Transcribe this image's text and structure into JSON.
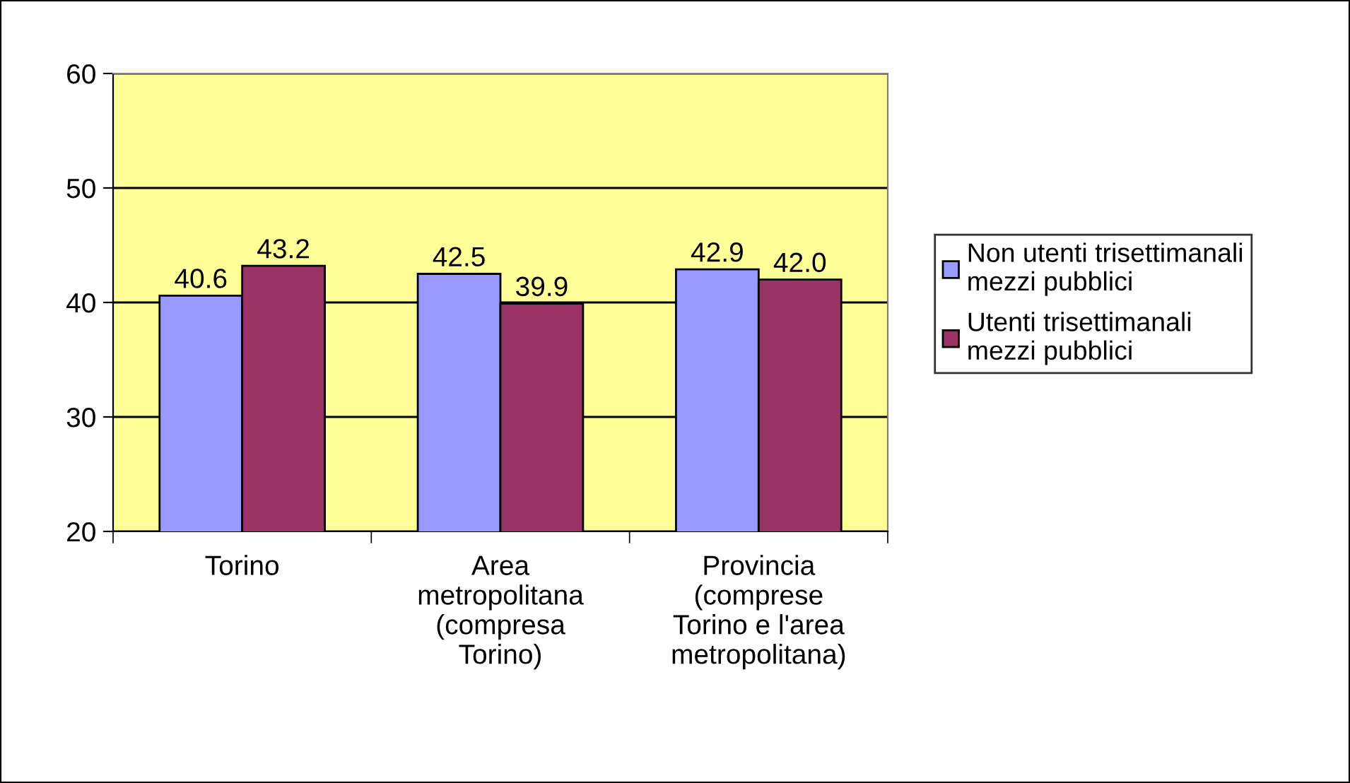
{
  "chart_data": {
    "type": "bar",
    "categories": [
      "Torino",
      "Area\nmetropolitana\n(compresa\nTorino)",
      "Provincia\n(comprese\nTorino e l'area\nmetropolitana)"
    ],
    "series": [
      {
        "name": "Non utenti trisettimanali\nmezzi pubblici",
        "color": "#9999ff",
        "values": [
          40.6,
          42.5,
          42.9
        ],
        "value_labels": [
          "40.6",
          "42.5",
          "42.9"
        ]
      },
      {
        "name": "Utenti trisettimanali\nmezzi pubblici",
        "color": "#993366",
        "values": [
          43.2,
          39.9,
          42.0
        ],
        "value_labels": [
          "43.2",
          "39.9",
          "42.0"
        ]
      }
    ],
    "ylim": [
      20,
      60
    ],
    "yticks": [
      20,
      30,
      40,
      50,
      60
    ],
    "grid": "y",
    "legend": "right"
  }
}
